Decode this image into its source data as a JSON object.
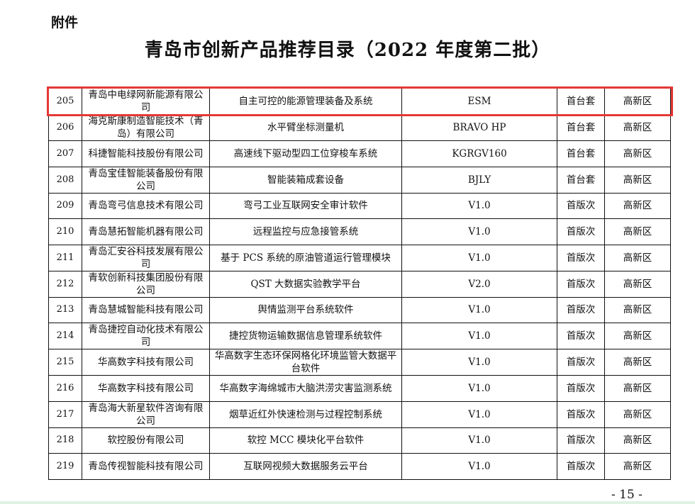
{
  "header": {
    "attachment_label": "附件",
    "title": "青岛市创新产品推荐目录（2022 年度第二批）"
  },
  "table": {
    "highlight_color": "#e53935",
    "rows": [
      {
        "no": "205",
        "company": "青岛中电绿网新能源有限公司",
        "product": "自主可控的能源管理装备及系统",
        "model": "ESM",
        "type": "首台套",
        "district": "高新区"
      },
      {
        "no": "206",
        "company": "海克斯康制造智能技术（青岛）有限公司",
        "product": "水平臂坐标测量机",
        "model": "BRAVO HP",
        "type": "首台套",
        "district": "高新区"
      },
      {
        "no": "207",
        "company": "科捷智能科技股份有限公司",
        "product": "高速线下驱动型四工位穿梭车系统",
        "model": "KGRGV160",
        "type": "首台套",
        "district": "高新区"
      },
      {
        "no": "208",
        "company": "青岛宝佳智能装备股份有限公司",
        "product": "智能装箱成套设备",
        "model": "BJLY",
        "type": "首台套",
        "district": "高新区"
      },
      {
        "no": "209",
        "company": "青岛弯弓信息技术有限公司",
        "product": "弯弓工业互联网安全审计软件",
        "model": "V1.0",
        "type": "首版次",
        "district": "高新区"
      },
      {
        "no": "210",
        "company": "青岛慧拓智能机器有限公司",
        "product": "远程监控与应急接管系统",
        "model": "V1.0",
        "type": "首版次",
        "district": "高新区"
      },
      {
        "no": "211",
        "company": "青岛汇安谷科技发展有限公司",
        "product": "基于 PCS 系统的原油管道运行管理模块",
        "model": "V1.0",
        "type": "首版次",
        "district": "高新区"
      },
      {
        "no": "212",
        "company": "青软创新科技集团股份有限公司",
        "product": "QST 大数据实验教学平台",
        "model": "V2.0",
        "type": "首版次",
        "district": "高新区"
      },
      {
        "no": "213",
        "company": "青岛慧城智能科技有限公司",
        "product": "舆情监测平台系统软件",
        "model": "V1.0",
        "type": "首版次",
        "district": "高新区"
      },
      {
        "no": "214",
        "company": "青岛捷控自动化技术有限公司",
        "product": "捷控货物运输数据信息管理系统软件",
        "model": "V1.0",
        "type": "首版次",
        "district": "高新区"
      },
      {
        "no": "215",
        "company": "华高数字科技有限公司",
        "product": "华高数字生态环保网格化环境监管大数据平台软件",
        "model": "V1.0",
        "type": "首版次",
        "district": "高新区"
      },
      {
        "no": "216",
        "company": "华高数字科技有限公司",
        "product": "华高数字海绵城市大脑洪涝灾害监测系统",
        "model": "V1.0",
        "type": "首版次",
        "district": "高新区"
      },
      {
        "no": "217",
        "company": "青岛海大新星软件咨询有限公司",
        "product": "烟草近红外快速检测与过程控制系统",
        "model": "V1.0",
        "type": "首版次",
        "district": "高新区"
      },
      {
        "no": "218",
        "company": "软控股份有限公司",
        "product": "软控 MCC 模块化平台软件",
        "model": "V1.0",
        "type": "首版次",
        "district": "高新区"
      },
      {
        "no": "219",
        "company": "青岛传视智能科技有限公司",
        "product": "互联网视频大数据服务云平台",
        "model": "V1.0",
        "type": "首版次",
        "district": "高新区"
      }
    ]
  },
  "footer": {
    "page_number": "- 15 -"
  }
}
